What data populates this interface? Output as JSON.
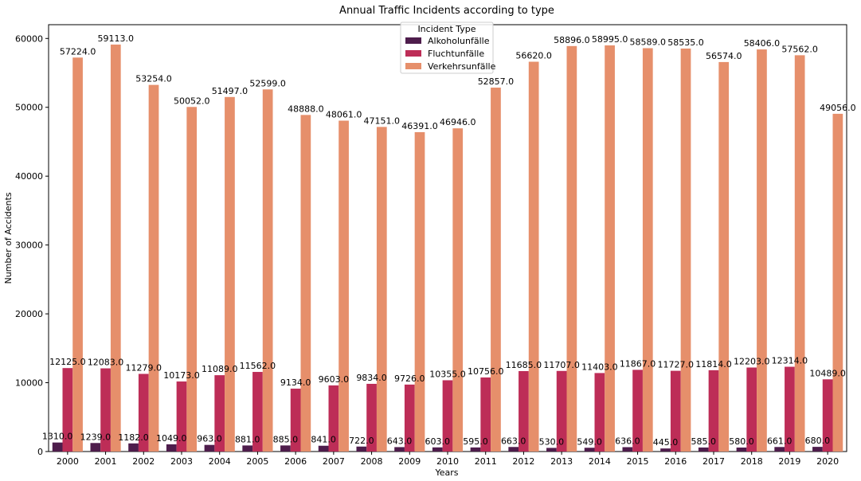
{
  "chart_data": {
    "type": "bar",
    "title": "Annual Traffic Incidents according to type",
    "xlabel": "Years",
    "ylabel": "Number of Accidents",
    "ylim": [
      0,
      62000
    ],
    "yticks": [
      0,
      10000,
      20000,
      30000,
      40000,
      50000,
      60000
    ],
    "grid": false,
    "legend": {
      "title": "Incident Type",
      "placement": "top-center"
    },
    "categories": [
      "2000",
      "2001",
      "2002",
      "2003",
      "2004",
      "2005",
      "2006",
      "2007",
      "2008",
      "2009",
      "2010",
      "2011",
      "2012",
      "2013",
      "2014",
      "2015",
      "2016",
      "2017",
      "2018",
      "2019",
      "2020"
    ],
    "series": [
      {
        "name": "Alkoholunfälle",
        "color": "#4e1d4c",
        "values": [
          1310,
          1239,
          1182,
          1049,
          963,
          881,
          885,
          841,
          722,
          643,
          603,
          595,
          663,
          530,
          549,
          636,
          445,
          585,
          580,
          661,
          680
        ],
        "labels": [
          "1310.0",
          "1239.0",
          "1182.0",
          "1049.0",
          "963.0",
          "881.0",
          "885.0",
          "841.0",
          "722.0",
          "643.0",
          "603.0",
          "595.0",
          "663.0",
          "530.0",
          "549.0",
          "636.0",
          "445.0",
          "585.0",
          "580.0",
          "661.0",
          "680.0"
        ]
      },
      {
        "name": "Fluchtunfälle",
        "color": "#bd2d57",
        "values": [
          12125,
          12083,
          11279,
          10173,
          11089,
          11562,
          9134,
          9603,
          9834,
          9726,
          10355,
          10756,
          11685,
          11707,
          11403,
          11867,
          11727,
          11814,
          12203,
          12314,
          10489
        ],
        "labels": [
          "12125.0",
          "12083.0",
          "11279.0",
          "10173.0",
          "11089.0",
          "11562.0",
          "9134.0",
          "9603.0",
          "9834.0",
          "9726.0",
          "10355.0",
          "10756.0",
          "11685.0",
          "11707.0",
          "11403.0",
          "11867.0",
          "11727.0",
          "11814.0",
          "12203.0",
          "12314.0",
          "10489.0"
        ]
      },
      {
        "name": "Verkehrsunfälle",
        "color": "#e68f6b",
        "values": [
          57224,
          59113,
          53254,
          50052,
          51497,
          52599,
          48888,
          48061,
          47151,
          46391,
          46946,
          52857,
          56620,
          58896,
          58995,
          58589,
          58535,
          56574,
          58406,
          57562,
          49056
        ],
        "labels": [
          "57224.0",
          "59113.0",
          "53254.0",
          "50052.0",
          "51497.0",
          "52599.0",
          "48888.0",
          "48061.0",
          "47151.0",
          "46391.0",
          "46946.0",
          "52857.0",
          "56620.0",
          "58896.0",
          "58995.0",
          "58589.0",
          "58535.0",
          "56574.0",
          "58406.0",
          "57562.0",
          "49056.0"
        ]
      }
    ]
  }
}
